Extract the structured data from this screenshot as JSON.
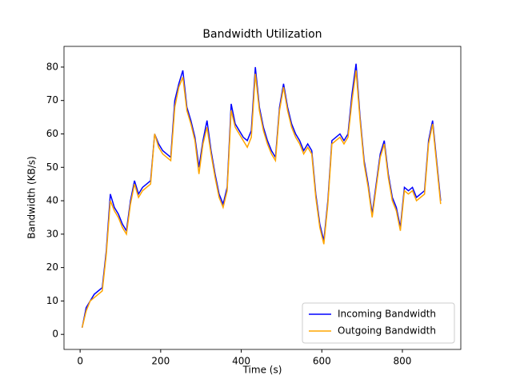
{
  "chart_data": {
    "type": "line",
    "title": "Bandwidth Utilization",
    "xlabel": "Time (s)",
    "ylabel": "Bandwidth (KB/s)",
    "x": [
      5,
      15,
      25,
      35,
      45,
      55,
      65,
      75,
      85,
      95,
      105,
      115,
      125,
      135,
      145,
      155,
      165,
      175,
      185,
      195,
      205,
      215,
      225,
      235,
      245,
      255,
      265,
      275,
      285,
      295,
      305,
      315,
      325,
      335,
      345,
      355,
      365,
      375,
      385,
      395,
      405,
      415,
      425,
      435,
      445,
      455,
      465,
      475,
      485,
      495,
      505,
      515,
      525,
      535,
      545,
      555,
      565,
      575,
      585,
      595,
      605,
      615,
      625,
      635,
      645,
      655,
      665,
      675,
      685,
      695,
      705,
      715,
      725,
      735,
      745,
      755,
      765,
      775,
      785,
      795,
      805,
      815,
      825,
      835,
      845,
      855,
      865,
      875,
      885,
      895
    ],
    "series": [
      {
        "name": "Incoming Bandwidth",
        "color": "#0000ff",
        "values": [
          2,
          8,
          10,
          12,
          13,
          14,
          25,
          42,
          38,
          36,
          33,
          31,
          40,
          46,
          42,
          44,
          45,
          46,
          60,
          57,
          55,
          54,
          53,
          70,
          75,
          79,
          68,
          64,
          59,
          50,
          58,
          64,
          55,
          48,
          42,
          39,
          44,
          69,
          63,
          61,
          59,
          58,
          61,
          80,
          68,
          62,
          58,
          55,
          53,
          68,
          75,
          68,
          63,
          60,
          58,
          55,
          57,
          55,
          42,
          33,
          28,
          40,
          58,
          59,
          60,
          58,
          60,
          72,
          81,
          65,
          52,
          45,
          36,
          45,
          54,
          58,
          48,
          41,
          38,
          32,
          44,
          43,
          44,
          41,
          42,
          43,
          58,
          64,
          52,
          40
        ]
      },
      {
        "name": "Outgoing Bandwidth",
        "color": "#ffa500",
        "values": [
          2,
          7,
          10,
          11,
          12,
          13,
          24,
          40,
          37,
          35,
          32,
          30,
          39,
          45,
          41,
          43,
          44,
          45,
          60,
          56,
          54,
          53,
          52,
          68,
          74,
          77,
          67,
          63,
          58,
          48,
          57,
          62,
          54,
          47,
          41,
          38,
          43,
          67,
          62,
          60,
          58,
          56,
          59,
          78,
          67,
          61,
          57,
          54,
          52,
          67,
          74,
          67,
          62,
          59,
          57,
          54,
          56,
          54,
          41,
          32,
          27,
          39,
          57,
          58,
          59,
          57,
          59,
          70,
          79,
          64,
          51,
          44,
          35,
          44,
          53,
          57,
          47,
          40,
          37,
          31,
          43,
          42,
          43,
          40,
          41,
          42,
          57,
          63,
          51,
          39
        ]
      }
    ],
    "xlim": [
      -40,
      945
    ],
    "ylim": [
      -4.5,
      86.2
    ],
    "xticks": [
      0,
      200,
      400,
      600,
      800
    ],
    "yticks": [
      0,
      10,
      20,
      30,
      40,
      50,
      60,
      70,
      80
    ],
    "legend": "lower right"
  }
}
